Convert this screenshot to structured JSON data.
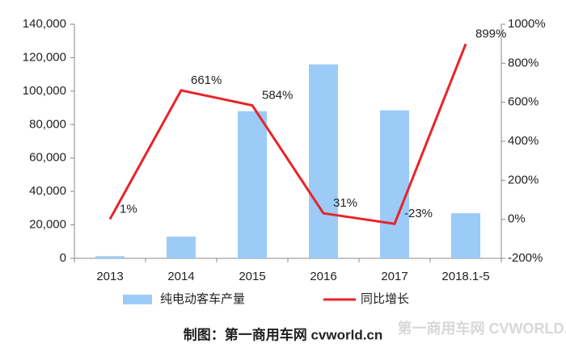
{
  "chart_data": {
    "type": "combo",
    "categories": [
      "2013",
      "2014",
      "2015",
      "2016",
      "2017",
      "2018.1-5"
    ],
    "series": [
      {
        "name": "纯电动客车产量",
        "type": "bar",
        "color": "#9ccbf8",
        "values": [
          1300,
          13000,
          88000,
          116000,
          88500,
          27000
        ]
      },
      {
        "name": "同比增长",
        "type": "line",
        "axis": "y2",
        "color": "#e8232a",
        "values": [
          1,
          661,
          584,
          31,
          -23,
          899
        ],
        "value_labels": [
          "1%",
          "661%",
          "584%",
          "31%",
          "-23%",
          "899%"
        ]
      }
    ],
    "ylim": [
      0,
      140000
    ],
    "yticks": [
      0,
      {
        "value": 20000,
        "label": "20,000"
      },
      {
        "value": 40000,
        "label": "40,000"
      },
      {
        "value": 60000,
        "label": "60,000"
      },
      {
        "value": 80000,
        "label": "80,000"
      },
      {
        "value": 100000,
        "label": "100,000"
      },
      {
        "value": 120000,
        "label": "120,000"
      },
      {
        "value": 140000,
        "label": "140,000"
      }
    ],
    "y2lim": [
      -200,
      1000
    ],
    "y2ticks": [
      {
        "value": -200,
        "label": "-200%"
      },
      {
        "value": 0,
        "label": "0%"
      },
      {
        "value": 200,
        "label": "200%"
      },
      {
        "value": 400,
        "label": "400%"
      },
      {
        "value": 600,
        "label": "600%"
      },
      {
        "value": 800,
        "label": "800%"
      },
      {
        "value": 1000,
        "label": "1000%"
      }
    ],
    "legend": "bottom",
    "footer": "制图：第一商用车网 cvworld.cn",
    "watermark": "第一商用车网 CVWORLD.CN"
  }
}
